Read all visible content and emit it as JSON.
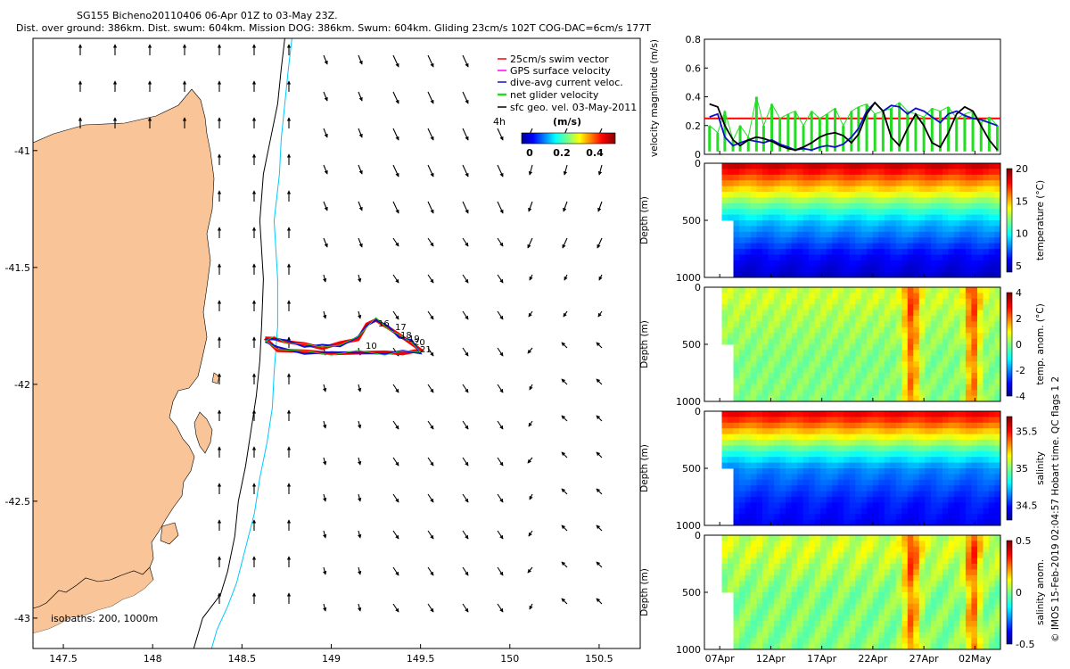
{
  "header": {
    "line1": "SG155 Bicheno20110406 06-Apr 01Z to 03-May 23Z.",
    "line2": "Dist. over ground: 386km. Dist. swum: 604km. Mission DOG: 386km. Swum: 604km. Gliding 23cm/s 102T COG-DAC=6cm/s 177T"
  },
  "credit": "© IMOS 15-Feb-2019 02:04:57 Hobart time. QC flags 1  2",
  "colors": {
    "land": "#f9c497",
    "red": "#ff0000",
    "green": "#22dd22",
    "blue": "#1010cc",
    "cyan": "#00c8ff",
    "black": "#000000"
  },
  "chart_data": [
    {
      "type": "map",
      "xticks": [
        "147.5",
        "148",
        "148.5",
        "149",
        "149.5",
        "150",
        "150.5"
      ],
      "xtick_values": [
        147.5,
        148,
        148.5,
        149,
        149.5,
        150,
        150.5
      ],
      "yticks": [
        "-41",
        "-41.5",
        "-42",
        "-42.5",
        "-43"
      ],
      "ytick_values": [
        -41,
        -41.5,
        -42,
        -42.5,
        -43
      ],
      "xlim": [
        147.33,
        150.73
      ],
      "ylim": [
        -43.13,
        -40.52
      ],
      "legend": {
        "items": [
          {
            "label": "25cm/s swim vector",
            "color": "#ff0000",
            "marker": "arrow"
          },
          {
            "label": "GPS surface velocity",
            "color": "#ff00ff",
            "marker": "arrow"
          },
          {
            "label": "dive-avg current veloc.",
            "color": "#1010cc",
            "marker": "arrow"
          },
          {
            "label": "net glider velocity",
            "color": "#22dd22",
            "marker": "arrow"
          },
          {
            "label": "sfc geo. vel. 03-May-2011",
            "color": "#000000",
            "marker": "arrow"
          }
        ],
        "extra_label": "4h",
        "colorbar_label": "(m/s)",
        "colorbar_ticks": [
          "0",
          "0.2",
          "0.4"
        ]
      },
      "isobath_label": "isobaths:  200, 1000m",
      "dive_labels": [
        "16",
        "17",
        "18",
        "19",
        "20",
        "21",
        "10"
      ],
      "track": {
        "lon": [
          148.63,
          148.68,
          148.75,
          148.85,
          148.95,
          149.05,
          149.15,
          149.2,
          149.25,
          149.32,
          149.38,
          149.45,
          149.5,
          149.4,
          149.3,
          149.15,
          149.0,
          148.85,
          148.7,
          148.63
        ],
        "lat": [
          -41.81,
          -41.8,
          -41.82,
          -41.83,
          -41.84,
          -41.83,
          -41.8,
          -41.75,
          -41.72,
          -41.76,
          -41.79,
          -41.82,
          -41.86,
          -41.86,
          -41.87,
          -41.86,
          -41.87,
          -41.86,
          -41.85,
          -41.81
        ]
      },
      "isobath_200": {
        "lon": [
          148.74,
          148.72,
          148.7,
          148.66,
          148.62,
          148.6,
          148.62,
          148.61,
          148.6,
          148.58,
          148.55,
          148.52,
          148.48,
          148.46,
          148.42,
          148.38,
          148.28,
          148.23
        ],
        "lat": [
          -40.52,
          -40.65,
          -40.8,
          -40.95,
          -41.1,
          -41.3,
          -41.55,
          -41.75,
          -41.9,
          -42.05,
          -42.2,
          -42.35,
          -42.5,
          -42.65,
          -42.8,
          -42.9,
          -43.0,
          -43.13
        ]
      },
      "isobath_1000": {
        "lon": [
          148.78,
          148.76,
          148.74,
          148.72,
          148.71,
          148.68,
          148.7,
          148.7,
          148.68,
          148.67,
          148.64,
          148.6,
          148.57,
          148.52,
          148.47,
          148.42,
          148.36,
          148.33
        ],
        "lat": [
          -40.52,
          -40.65,
          -40.8,
          -40.95,
          -41.1,
          -41.3,
          -41.55,
          -41.75,
          -41.95,
          -42.1,
          -42.25,
          -42.4,
          -42.55,
          -42.7,
          -42.85,
          -42.95,
          -43.05,
          -43.13
        ]
      }
    },
    {
      "type": "line",
      "ylabel": "velocity magnitude (m/s)",
      "yticks": [
        "0",
        "0.2",
        "0.4",
        "0.6",
        "0.8"
      ],
      "ytick_values": [
        0,
        0.2,
        0.4,
        0.6,
        0.8
      ],
      "ylim": [
        0,
        0.8
      ],
      "xlim": [
        5.5,
        34.5
      ],
      "reference_value": 0.25,
      "series": [
        {
          "color": "#22dd22",
          "x": [
            6.0,
            6.8,
            7.5,
            8.3,
            9.0,
            9.8,
            10.6,
            11.3,
            12.1,
            12.9,
            13.7,
            14.4,
            15.2,
            16.0,
            16.8,
            17.5,
            18.3,
            19.1,
            19.9,
            20.6,
            21.4,
            22.2,
            23.0,
            23.8,
            24.6,
            25.4,
            26.2,
            27.0,
            27.8,
            28.6,
            29.4,
            30.2,
            31.0,
            31.8,
            32.6,
            33.4,
            34.2
          ],
          "values": [
            0.2,
            0.15,
            0.3,
            0.1,
            0.2,
            0.12,
            0.4,
            0.2,
            0.35,
            0.25,
            0.28,
            0.3,
            0.2,
            0.3,
            0.25,
            0.28,
            0.32,
            0.2,
            0.3,
            0.33,
            0.35,
            0.28,
            0.3,
            0.32,
            0.36,
            0.3,
            0.28,
            0.26,
            0.32,
            0.3,
            0.33,
            0.25,
            0.28,
            0.3,
            0.22,
            0.26,
            0.2
          ]
        },
        {
          "color": "#1010cc",
          "x": [
            6.0,
            6.8,
            7.5,
            8.3,
            9.0,
            9.8,
            10.6,
            11.3,
            12.1,
            12.9,
            13.7,
            14.4,
            15.2,
            16.0,
            16.8,
            17.5,
            18.3,
            19.1,
            19.9,
            20.6,
            21.4,
            22.2,
            23.0,
            23.8,
            24.6,
            25.4,
            26.2,
            27.0,
            27.8,
            28.6,
            29.4,
            30.2,
            31.0,
            31.8,
            32.6,
            33.4,
            34.2
          ],
          "values": [
            0.26,
            0.28,
            0.12,
            0.06,
            0.08,
            0.1,
            0.09,
            0.08,
            0.1,
            0.07,
            0.05,
            0.03,
            0.04,
            0.03,
            0.05,
            0.06,
            0.05,
            0.07,
            0.12,
            0.18,
            0.3,
            0.36,
            0.3,
            0.34,
            0.33,
            0.28,
            0.32,
            0.3,
            0.26,
            0.22,
            0.28,
            0.3,
            0.27,
            0.25,
            0.24,
            0.22,
            0.2
          ]
        },
        {
          "color": "#000000",
          "x": [
            6.0,
            6.8,
            7.5,
            8.3,
            9.0,
            9.8,
            10.6,
            11.3,
            12.1,
            12.9,
            13.7,
            14.4,
            15.2,
            16.0,
            16.8,
            17.5,
            18.3,
            19.1,
            19.9,
            20.6,
            21.4,
            22.2,
            23.0,
            23.8,
            24.6,
            25.4,
            26.2,
            27.0,
            27.8,
            28.6,
            29.4,
            30.2,
            31.0,
            31.8,
            32.6,
            33.4,
            34.2
          ],
          "values": [
            0.35,
            0.33,
            0.2,
            0.1,
            0.06,
            0.1,
            0.12,
            0.11,
            0.09,
            0.06,
            0.04,
            0.03,
            0.05,
            0.08,
            0.12,
            0.14,
            0.15,
            0.13,
            0.08,
            0.14,
            0.28,
            0.36,
            0.3,
            0.12,
            0.06,
            0.18,
            0.28,
            0.2,
            0.08,
            0.05,
            0.15,
            0.28,
            0.33,
            0.3,
            0.2,
            0.1,
            0.03
          ]
        }
      ]
    },
    {
      "type": "heatmap",
      "ylabel": "Depth (m)",
      "colorbar_label": "temperature (°C)",
      "yticks": [
        "0",
        "500",
        "1000"
      ],
      "ytick_values": [
        0,
        500,
        1000
      ],
      "ylim": [
        0,
        1000
      ],
      "xlim": [
        5.5,
        34.5
      ],
      "colorbar_ticks": [
        "5",
        "10",
        "15",
        "20"
      ],
      "colorbar_tick_values": [
        5,
        10,
        15,
        20
      ],
      "colorbar_range": [
        4,
        20
      ],
      "profile_depth": [
        0,
        100,
        200,
        300,
        400,
        500,
        600,
        700,
        800,
        900,
        1000
      ],
      "profile_values": [
        19,
        17,
        15,
        13,
        11,
        9,
        8,
        7,
        6,
        5.5,
        5
      ]
    },
    {
      "type": "heatmap",
      "ylabel": "Depth (m)",
      "colorbar_label": "temp. anom. (°C)",
      "yticks": [
        "0",
        "500",
        "1000"
      ],
      "ytick_values": [
        0,
        500,
        1000
      ],
      "ylim": [
        0,
        1000
      ],
      "xlim": [
        5.5,
        34.5
      ],
      "colorbar_ticks": [
        "-4",
        "-2",
        "0",
        "2",
        "4"
      ],
      "colorbar_tick_values": [
        -4,
        -2,
        0,
        2,
        4
      ],
      "colorbar_range": [
        -4,
        4
      ],
      "profile_depth": [
        0,
        100,
        200,
        300,
        400,
        500,
        600,
        700,
        800,
        900,
        1000
      ],
      "profile_values": [
        0.5,
        0.6,
        0.4,
        0.3,
        0.2,
        0.1,
        0,
        0,
        0,
        0,
        0
      ]
    },
    {
      "type": "heatmap",
      "ylabel": "Depth (m)",
      "colorbar_label": "salinity",
      "yticks": [
        "0",
        "500",
        "1000"
      ],
      "ytick_values": [
        0,
        500,
        1000
      ],
      "ylim": [
        0,
        1000
      ],
      "xlim": [
        5.5,
        34.5
      ],
      "colorbar_ticks": [
        "34.5",
        "35",
        "35.5"
      ],
      "colorbar_tick_values": [
        34.5,
        35,
        35.5
      ],
      "colorbar_range": [
        34.3,
        35.7
      ],
      "profile_depth": [
        0,
        100,
        200,
        300,
        400,
        500,
        600,
        700,
        800,
        900,
        1000
      ],
      "profile_values": [
        35.55,
        35.4,
        35.2,
        35.0,
        34.8,
        34.65,
        34.6,
        34.55,
        34.5,
        34.48,
        34.45
      ]
    },
    {
      "type": "heatmap",
      "ylabel": "Depth (m)",
      "colorbar_label": "salinity anom.",
      "yticks": [
        "0",
        "500",
        "1000"
      ],
      "ytick_values": [
        0,
        500,
        1000
      ],
      "ylim": [
        0,
        1000
      ],
      "xlim": [
        5.5,
        34.5
      ],
      "colorbar_ticks": [
        "-0.5",
        "0",
        "0.5"
      ],
      "colorbar_tick_values": [
        -0.5,
        0,
        0.5
      ],
      "colorbar_range": [
        -0.5,
        0.5
      ],
      "xticks": [
        "07Apr",
        "12Apr",
        "17Apr",
        "22Apr",
        "27Apr",
        "02May"
      ],
      "xtick_values": [
        7,
        12,
        17,
        22,
        27,
        32
      ],
      "profile_depth": [
        0,
        100,
        200,
        300,
        400,
        500,
        600,
        700,
        800,
        900,
        1000
      ],
      "profile_values": [
        0.05,
        0.08,
        0.06,
        0.04,
        0.02,
        0,
        0,
        0,
        0,
        0,
        0
      ]
    }
  ]
}
